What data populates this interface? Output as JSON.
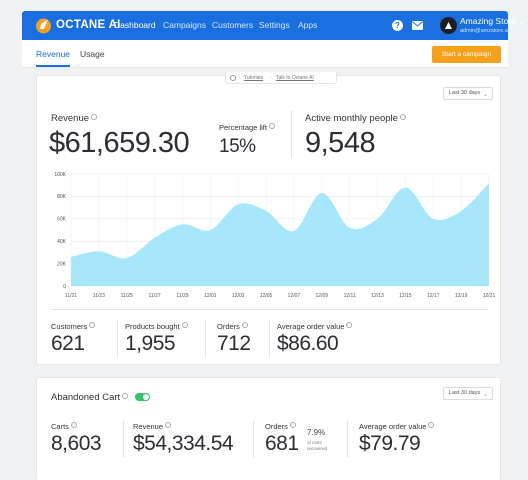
{
  "nav": {
    "brand": "OCTANE AI",
    "links": [
      "Dashboard",
      "Campaigns",
      "Customers",
      "Settings",
      "Apps"
    ],
    "store_name": "Amazing Store",
    "store_email": "admin@amzstore.ai",
    "help_glyph": "?"
  },
  "subnav": {
    "tabs": [
      "Revenue",
      "Usage"
    ],
    "cta": "Start a campaign"
  },
  "revenue_card": {
    "tutorial_link": "Tutorials",
    "talk_link": "Talk to Octane AI",
    "separator": "·",
    "date_range": "Last 30 days",
    "revenue_label": "Revenue",
    "revenue_value": "$61,659.30",
    "lift_label": "Percentage lift",
    "lift_value": "15%",
    "active_label": "Active monthly people",
    "active_value": "9,548",
    "stats": [
      {
        "label": "Customers",
        "value": "621"
      },
      {
        "label": "Products bought",
        "value": "1,955"
      },
      {
        "label": "Orders",
        "value": "712"
      },
      {
        "label": "Average order value",
        "value": "$86.60"
      }
    ]
  },
  "chart_data": {
    "type": "area",
    "x": [
      "11/21",
      "11/23",
      "11/25",
      "11/27",
      "11/29",
      "12/01",
      "12/03",
      "12/05",
      "12/07",
      "12/09",
      "12/11",
      "12/13",
      "12/15",
      "12/17",
      "12/19",
      "12/21"
    ],
    "values": [
      26000,
      31000,
      25000,
      43000,
      55000,
      50000,
      73000,
      67000,
      49000,
      83000,
      52000,
      60000,
      88000,
      60000,
      67000,
      92000
    ],
    "yticks": [
      "0",
      "20K",
      "40K",
      "60K",
      "80K",
      "100K"
    ],
    "ylim": [
      0,
      100000
    ],
    "fill": "#a7e7fc",
    "grid": true
  },
  "abandoned_card": {
    "title": "Abandoned Cart",
    "toggle_on": true,
    "date_range": "Last 30 days",
    "stats": [
      {
        "label": "Carts",
        "value": "8,603"
      },
      {
        "label": "Revenue",
        "value": "$54,334.54"
      },
      {
        "label": "Orders",
        "value": "681"
      },
      {
        "label": "Average order value",
        "value": "$79.79"
      }
    ],
    "recovered_pct": "7.9%",
    "recovered_note": "of carts recovered"
  },
  "colors": {
    "nav_bg": "#1a6fe0",
    "cta": "#f5a11b",
    "toggle": "#34c26a",
    "chart_fill": "#a7e7fc"
  },
  "icons": [
    "octane-logo-icon",
    "help-icon",
    "mail-icon",
    "chevron-down-icon",
    "info-icon"
  ]
}
